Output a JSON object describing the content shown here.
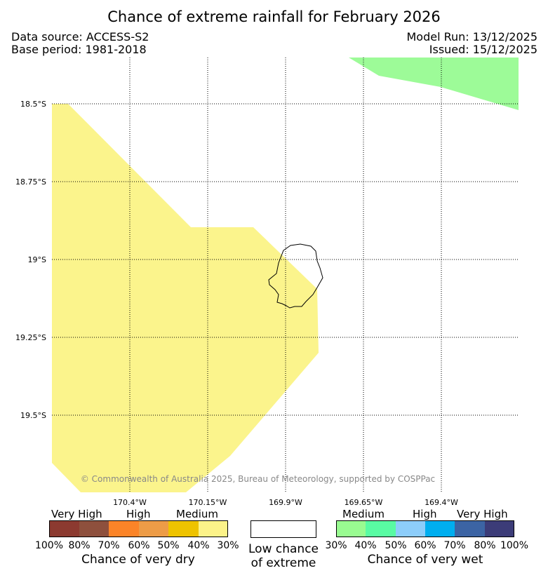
{
  "header": {
    "title": "Chance of extreme rainfall for February 2026",
    "data_source": "Data source: ACCESS-S2",
    "base_period": "Base period: 1981-2018",
    "model_run": "Model Run: 13/12/2025",
    "issued": "Issued: 15/12/2025"
  },
  "map": {
    "lat_labels": [
      "18.5°S",
      "18.75°S",
      "19°S",
      "19.25°S",
      "19.5°S"
    ],
    "lon_labels": [
      "170.4°W",
      "170.15°W",
      "169.9°W",
      "169.65°W",
      "169.4°W"
    ],
    "regions": [
      {
        "category": "very-dry-30-40",
        "color": "#fbf48c"
      },
      {
        "category": "very-wet-30-40",
        "color": "#9dfb98"
      }
    ],
    "land_outline": "Niue",
    "copyright": "© Commonwealth of Australia 2025, Bureau of Meteorology, supported by COSPPac"
  },
  "legend": {
    "dry": {
      "headers": [
        "Very High",
        "High",
        "Medium"
      ],
      "colors": [
        "#8c3a30",
        "#8e503d",
        "#fb8428",
        "#ed9c47",
        "#eec300",
        "#fcf389"
      ],
      "percent_labels": [
        "100%",
        "80%",
        "70%",
        "60%",
        "50%",
        "40%",
        "30%"
      ],
      "title": "Chance of very dry"
    },
    "neutral": {
      "color": "#ffffff",
      "line1": "Low chance",
      "line2": "of extreme"
    },
    "wet": {
      "headers": [
        "Medium",
        "High",
        "Very High"
      ],
      "colors": [
        "#99fb91",
        "#59fba3",
        "#8dcdfa",
        "#00aeef",
        "#3c64a4",
        "#3c3c78"
      ],
      "percent_labels": [
        "30%",
        "40%",
        "50%",
        "60%",
        "70%",
        "80%",
        "100%"
      ],
      "title": "Chance of very wet"
    }
  }
}
